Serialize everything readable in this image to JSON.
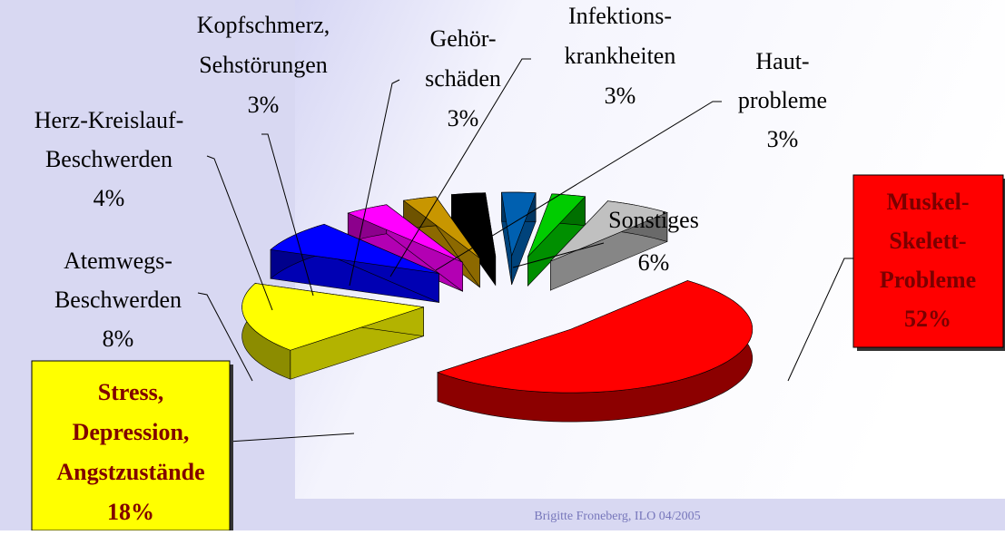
{
  "chart_data": {
    "type": "pie3d",
    "categories": [
      [
        "Muskel-",
        "Skelett-",
        "Probleme"
      ],
      [
        "Stress,",
        "Depression,",
        "Angstzustände"
      ],
      [
        "Atemwegs-",
        "Beschwerden"
      ],
      [
        "Herz-Kreislauf-",
        "Beschwerden"
      ],
      [
        "Kopfschmerz,",
        "Sehstörungen"
      ],
      [
        "Gehör-",
        "schäden"
      ],
      [
        "Infektions-",
        "krankheiten"
      ],
      [
        "Haut-",
        "probleme"
      ],
      [
        "Sonstiges"
      ]
    ],
    "values": [
      52,
      18,
      8,
      4,
      3,
      3,
      3,
      3,
      6
    ],
    "value_labels": [
      "52%",
      "18%",
      "8%",
      "4%",
      "3%",
      "3%",
      "3%",
      "3%",
      "6%"
    ],
    "colors": [
      "#ff0000",
      "#ffff00",
      "#0000ff",
      "#ff00ff",
      "#c89600",
      "#000000",
      "#0060b0",
      "#00cc00",
      "#c0c0c0"
    ]
  },
  "footer": "Brigitte Froneberg, ILO 04/2005"
}
